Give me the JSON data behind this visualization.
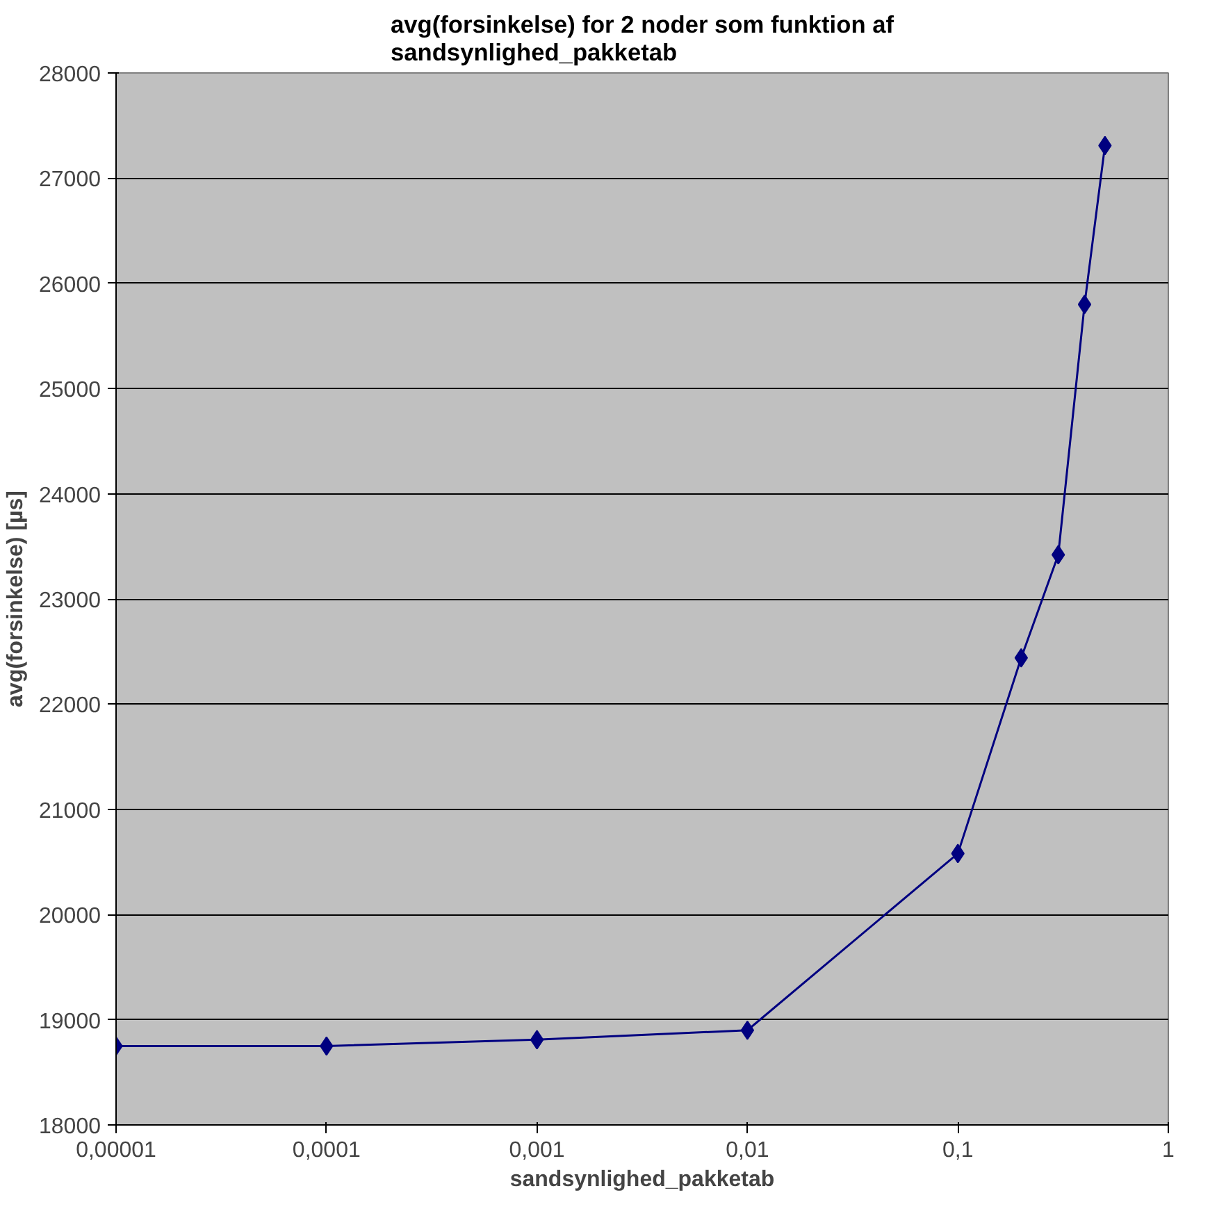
{
  "chart_data": {
    "type": "line",
    "title": "avg(forsinkelse) for 2 noder som funktion af\nsandsynlighed_pakketab",
    "xlabel": "sandsynlighed_pakketab",
    "ylabel": "avg(forsinkelse) [µs]",
    "x": [
      1e-05,
      0.0001,
      0.001,
      0.01,
      0.1,
      0.2,
      0.3,
      0.4,
      0.5
    ],
    "series": [
      {
        "color": "#000080",
        "values": [
          18750,
          18750,
          18810,
          18900,
          20580,
          22440,
          23420,
          25800,
          27310
        ]
      }
    ],
    "log": "x",
    "xlim": [
      1e-05,
      1
    ],
    "ylim": [
      18000,
      28000
    ],
    "xticks": [
      {
        "value": 1e-05,
        "label": "0,00001"
      },
      {
        "value": 0.0001,
        "label": "0,0001"
      },
      {
        "value": 0.001,
        "label": "0,001"
      },
      {
        "value": 0.01,
        "label": "0,01"
      },
      {
        "value": 0.1,
        "label": "0,1"
      },
      {
        "value": 1,
        "label": "1"
      }
    ],
    "yticks": [
      18000,
      19000,
      20000,
      21000,
      22000,
      23000,
      24000,
      25000,
      26000,
      27000,
      28000
    ],
    "grid": "y",
    "marker": "diamond",
    "line_style": "solid"
  }
}
